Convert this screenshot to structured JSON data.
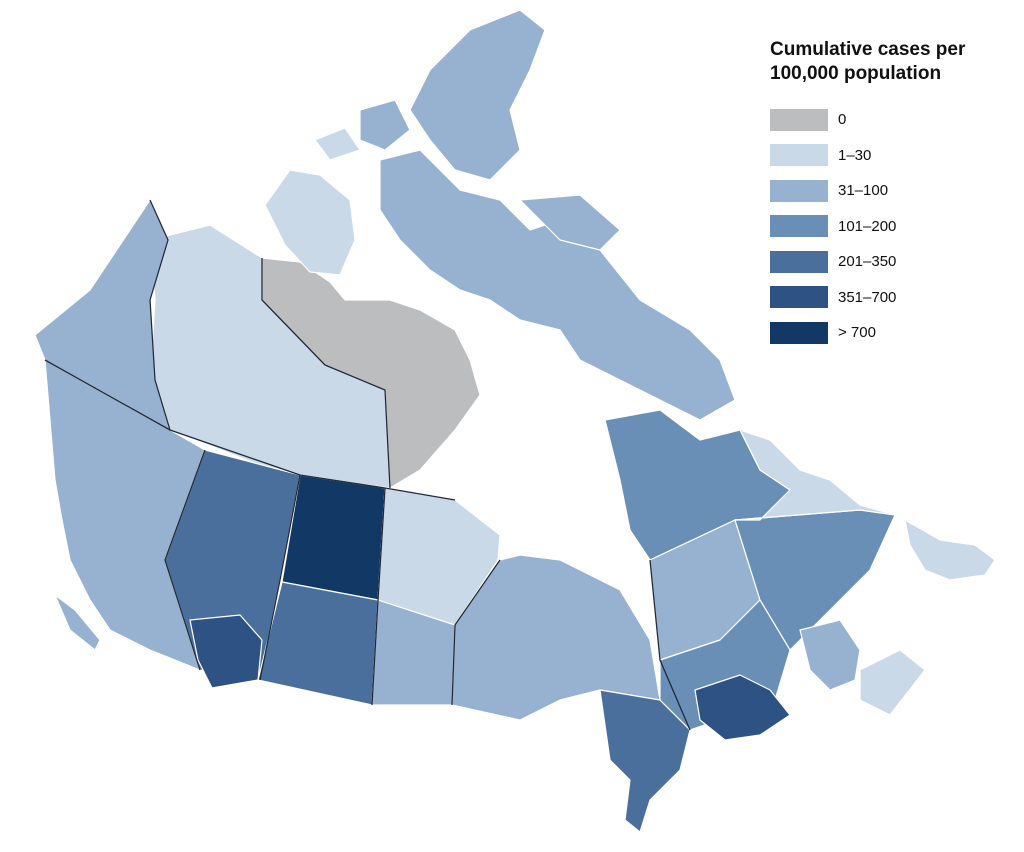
{
  "legend": {
    "title_line1": "Cumulative cases per",
    "title_line2": "100,000 population",
    "items": [
      {
        "label": "0",
        "color": "#bcbdbf"
      },
      {
        "label": "1–30",
        "color": "#cad9e8"
      },
      {
        "label": "31–100",
        "color": "#97b2d0"
      },
      {
        "label": "101–200",
        "color": "#6a8fb7"
      },
      {
        "label": "201–350",
        "color": "#4a6f9c"
      },
      {
        "label": "351–700",
        "color": "#2d5283"
      },
      {
        "label": "> 700",
        "color": "#123965"
      }
    ]
  },
  "regions": [
    {
      "name": "yukon",
      "bin": 2
    },
    {
      "name": "northwest-territories",
      "bin": 1
    },
    {
      "name": "nunavut",
      "bin": 0
    },
    {
      "name": "british-columbia",
      "bin": 2
    },
    {
      "name": "alberta",
      "bin": 4
    },
    {
      "name": "saskatchewan",
      "bin": 6
    },
    {
      "name": "manitoba",
      "bin": 1
    },
    {
      "name": "ontario",
      "bin": 2
    },
    {
      "name": "quebec",
      "bin": 3
    },
    {
      "name": "newfoundland-and-labrador",
      "bin": 1
    },
    {
      "name": "maritimes",
      "bin": 2
    },
    {
      "name": "montreal-area",
      "bin": 5
    },
    {
      "name": "southern-ontario",
      "bin": 4
    },
    {
      "name": "calgary-area",
      "bin": 5
    }
  ]
}
